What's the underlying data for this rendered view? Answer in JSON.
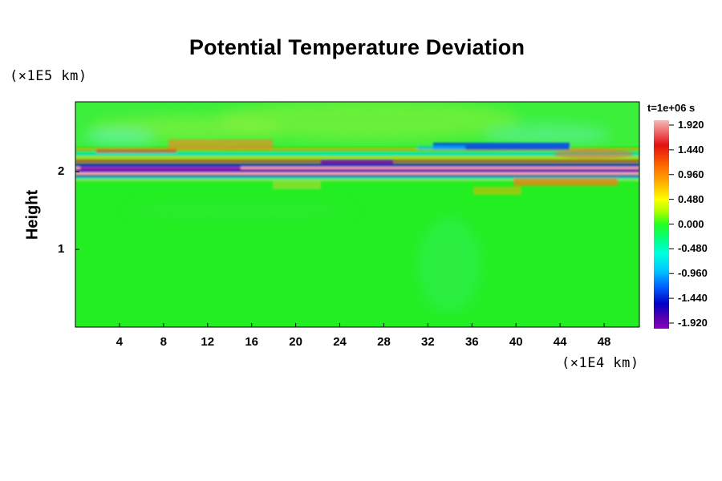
{
  "chart_data": {
    "type": "heatmap",
    "title": "Potential Temperature Deviation",
    "ylabel": "Height",
    "y_unit": "(×1E5 km)",
    "x_unit": "(×1E4 km)",
    "timestamp": "t=1e+06 s",
    "x_ticks": [
      "4",
      "8",
      "12",
      "16",
      "20",
      "24",
      "28",
      "32",
      "36",
      "40",
      "44",
      "48"
    ],
    "y_ticks": [
      "1",
      "2"
    ],
    "xlim": [
      0,
      51.2
    ],
    "ylim": [
      0,
      2.9
    ],
    "colorbar": {
      "ticks": [
        "1.920",
        "1.440",
        "0.960",
        "0.480",
        "0.000",
        "-0.480",
        "-0.960",
        "-1.440",
        "-1.920"
      ],
      "range": [
        -1.92,
        1.92
      ]
    },
    "field_summary": {
      "background": "0.000",
      "features": [
        {
          "description": "thin layered band of alternating strong positive and negative deviation",
          "y_range": [
            1.95,
            2.3
          ],
          "x_range": [
            0,
            51.2
          ]
        },
        {
          "description": "negative deviation region (blue)",
          "y_range": [
            2.2,
            2.3
          ],
          "x_range": [
            32,
            46
          ]
        },
        {
          "description": "positive deviation wave packets (orange/red)",
          "y_range": [
            2.3,
            2.45
          ],
          "x_range": [
            8,
            18
          ]
        }
      ]
    }
  }
}
